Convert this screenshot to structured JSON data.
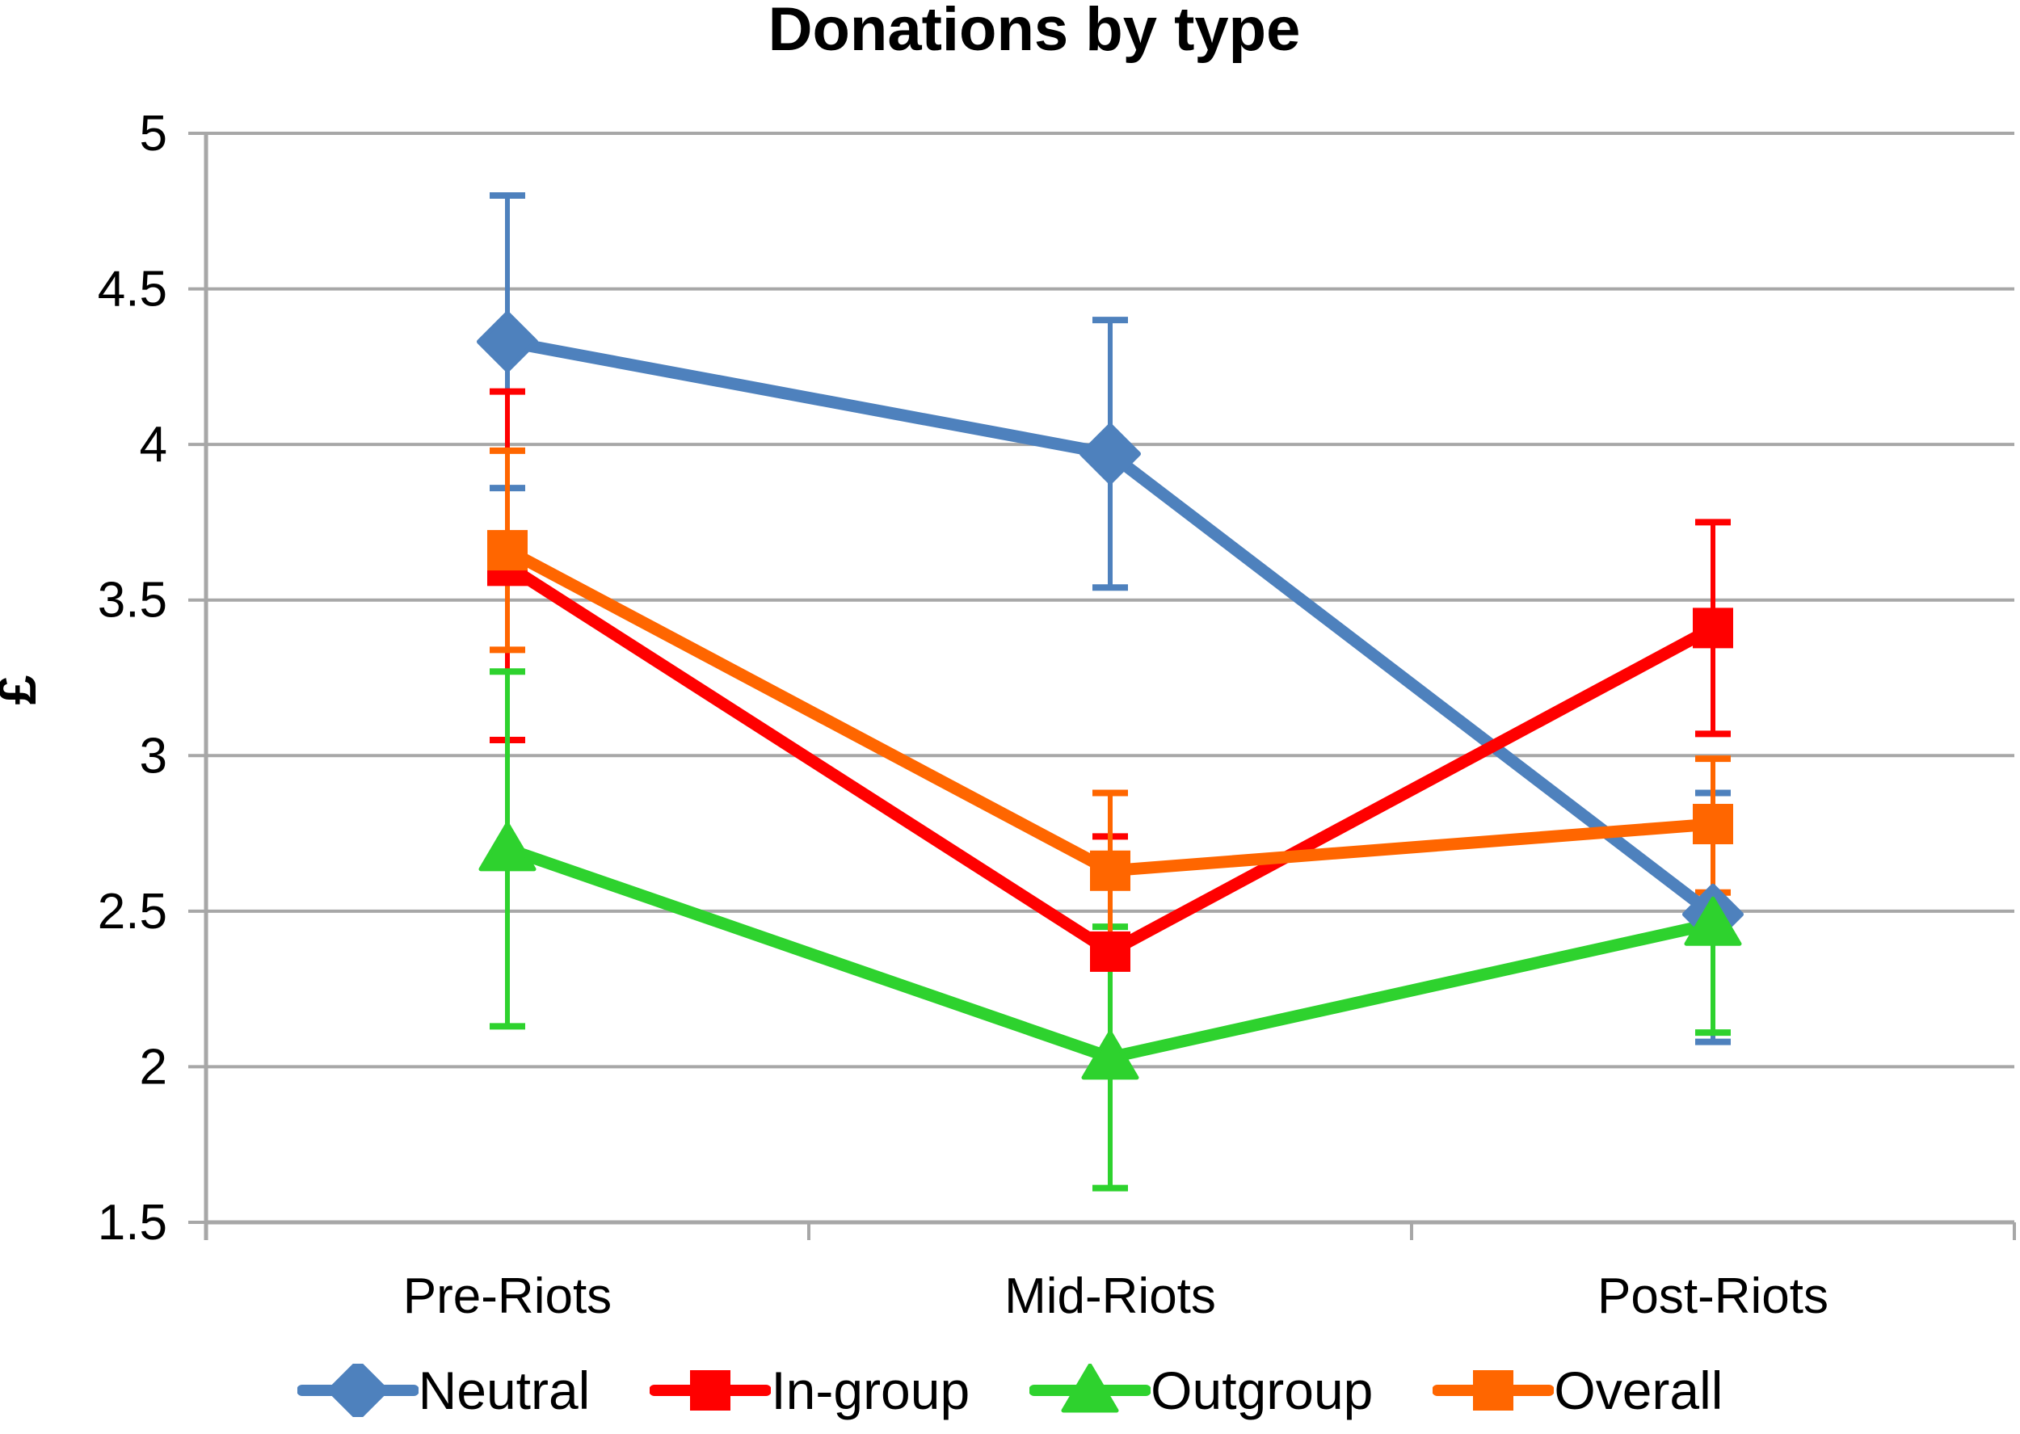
{
  "chart_data": {
    "type": "line",
    "title": "Donations by type",
    "ylabel": "£",
    "categories": [
      "Pre-Riots",
      "Mid-Riots",
      "Post-Riots"
    ],
    "y_axis": {
      "min": 1.5,
      "max": 5,
      "tick_step": 0.5,
      "tick_labels": [
        "5",
        "4.5",
        "4",
        "3.5",
        "3",
        "2.5",
        "2",
        "1.5"
      ]
    },
    "grid": true,
    "legend_position": "bottom",
    "error_bars": true,
    "series": [
      {
        "name": "Neutral",
        "marker": "diamond",
        "color": "#4E81BD",
        "values": [
          4.33,
          3.97,
          2.49
        ],
        "error_low": [
          3.86,
          3.54,
          2.08
        ],
        "error_high": [
          4.8,
          4.4,
          2.88
        ]
      },
      {
        "name": "In-group",
        "marker": "square",
        "color": "#FF0000",
        "values": [
          3.61,
          2.37,
          3.41
        ],
        "error_low": [
          3.05,
          2.0,
          3.07
        ],
        "error_high": [
          4.17,
          2.74,
          3.75
        ]
      },
      {
        "name": "Outgroup",
        "marker": "triangle",
        "color": "#2ED22E",
        "values": [
          2.7,
          2.03,
          2.46
        ],
        "error_low": [
          2.13,
          1.61,
          2.11
        ],
        "error_high": [
          3.27,
          2.45,
          2.82
        ]
      },
      {
        "name": "Overall",
        "marker": "square",
        "color": "#FF6600",
        "values": [
          3.66,
          2.63,
          2.78
        ],
        "error_low": [
          3.34,
          2.38,
          2.56
        ],
        "error_high": [
          3.98,
          2.88,
          2.99
        ]
      }
    ],
    "colors": {
      "gridline": "#A7A7A7",
      "axis": "#A7A7A7",
      "text": "#000000",
      "background": "#FFFFFF"
    }
  }
}
